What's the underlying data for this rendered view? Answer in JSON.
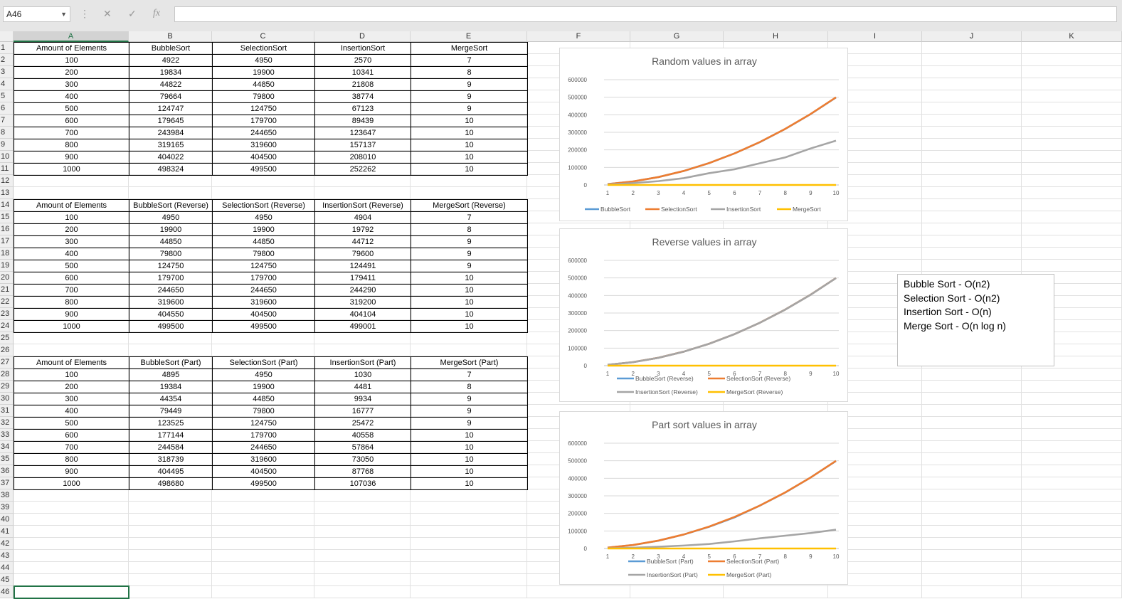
{
  "formula_bar": {
    "name_box": "A46",
    "formula": ""
  },
  "columns": [
    "A",
    "B",
    "C",
    "D",
    "E",
    "F",
    "G",
    "H",
    "I",
    "J",
    "K"
  ],
  "rows": [
    "1",
    "2",
    "3",
    "4",
    "5",
    "6",
    "7",
    "8",
    "9",
    "10",
    "11",
    "12",
    "13",
    "14",
    "15",
    "16",
    "17",
    "18",
    "19",
    "20",
    "21",
    "22",
    "23",
    "24",
    "25",
    "26",
    "27",
    "28",
    "29",
    "30",
    "31",
    "32",
    "33",
    "34",
    "35",
    "36",
    "37",
    "38",
    "39",
    "40",
    "41",
    "42",
    "43",
    "44",
    "45",
    "46"
  ],
  "tables": [
    {
      "headers": [
        "Amount of Elements",
        "BubbleSort",
        "SelectionSort",
        "InsertionSort",
        "MergeSort"
      ],
      "rows": [
        [
          "100",
          "4922",
          "4950",
          "2570",
          "7"
        ],
        [
          "200",
          "19834",
          "19900",
          "10341",
          "8"
        ],
        [
          "300",
          "44822",
          "44850",
          "21808",
          "9"
        ],
        [
          "400",
          "79664",
          "79800",
          "38774",
          "9"
        ],
        [
          "500",
          "124747",
          "124750",
          "67123",
          "9"
        ],
        [
          "600",
          "179645",
          "179700",
          "89439",
          "10"
        ],
        [
          "700",
          "243984",
          "244650",
          "123647",
          "10"
        ],
        [
          "800",
          "319165",
          "319600",
          "157137",
          "10"
        ],
        [
          "900",
          "404022",
          "404500",
          "208010",
          "10"
        ],
        [
          "1000",
          "498324",
          "499500",
          "252262",
          "10"
        ]
      ]
    },
    {
      "headers": [
        "Amount of Elements",
        "BubbleSort (Reverse)",
        "SelectionSort (Reverse)",
        "InsertionSort (Reverse)",
        "MergeSort (Reverse)"
      ],
      "rows": [
        [
          "100",
          "4950",
          "4950",
          "4904",
          "7"
        ],
        [
          "200",
          "19900",
          "19900",
          "19792",
          "8"
        ],
        [
          "300",
          "44850",
          "44850",
          "44712",
          "9"
        ],
        [
          "400",
          "79800",
          "79800",
          "79600",
          "9"
        ],
        [
          "500",
          "124750",
          "124750",
          "124491",
          "9"
        ],
        [
          "600",
          "179700",
          "179700",
          "179411",
          "10"
        ],
        [
          "700",
          "244650",
          "244650",
          "244290",
          "10"
        ],
        [
          "800",
          "319600",
          "319600",
          "319200",
          "10"
        ],
        [
          "900",
          "404550",
          "404500",
          "404104",
          "10"
        ],
        [
          "1000",
          "499500",
          "499500",
          "499001",
          "10"
        ]
      ]
    },
    {
      "headers": [
        "Amount of Elements",
        "BubbleSort (Part)",
        "SelectionSort (Part)",
        "InsertionSort (Part)",
        "MergeSort (Part)"
      ],
      "rows": [
        [
          "100",
          "4895",
          "4950",
          "1030",
          "7"
        ],
        [
          "200",
          "19384",
          "19900",
          "4481",
          "8"
        ],
        [
          "300",
          "44354",
          "44850",
          "9934",
          "9"
        ],
        [
          "400",
          "79449",
          "79800",
          "16777",
          "9"
        ],
        [
          "500",
          "123525",
          "124750",
          "25472",
          "9"
        ],
        [
          "600",
          "177144",
          "179700",
          "40558",
          "10"
        ],
        [
          "700",
          "244584",
          "244650",
          "57864",
          "10"
        ],
        [
          "800",
          "318739",
          "319600",
          "73050",
          "10"
        ],
        [
          "900",
          "404495",
          "404500",
          "87768",
          "10"
        ],
        [
          "1000",
          "498680",
          "499500",
          "107036",
          "10"
        ]
      ]
    }
  ],
  "chart_data": [
    {
      "type": "line",
      "title": "Random values in array",
      "categories": [
        "1",
        "2",
        "3",
        "4",
        "5",
        "6",
        "7",
        "8",
        "9",
        "10"
      ],
      "yticks": [
        "0",
        "100000",
        "200000",
        "300000",
        "400000",
        "500000",
        "600000"
      ],
      "ylim": [
        0,
        600000
      ],
      "legend_position": "bottom",
      "series": [
        {
          "name": "BubbleSort",
          "color": "#5b9bd5",
          "values": [
            4922,
            19834,
            44822,
            79664,
            124747,
            179645,
            243984,
            319165,
            404022,
            498324
          ]
        },
        {
          "name": "SelectionSort",
          "color": "#ed7d31",
          "values": [
            4950,
            19900,
            44850,
            79800,
            124750,
            179700,
            244650,
            319600,
            404500,
            499500
          ]
        },
        {
          "name": "InsertionSort",
          "color": "#a5a5a5",
          "values": [
            2570,
            10341,
            21808,
            38774,
            67123,
            89439,
            123647,
            157137,
            208010,
            252262
          ]
        },
        {
          "name": "MergeSort",
          "color": "#ffc000",
          "values": [
            7,
            8,
            9,
            9,
            9,
            10,
            10,
            10,
            10,
            10
          ]
        }
      ]
    },
    {
      "type": "line",
      "title": "Reverse values in array",
      "categories": [
        "1",
        "2",
        "3",
        "4",
        "5",
        "6",
        "7",
        "8",
        "9",
        "10"
      ],
      "yticks": [
        "0",
        "100000",
        "200000",
        "300000",
        "400000",
        "500000",
        "600000"
      ],
      "ylim": [
        0,
        600000
      ],
      "legend_position": "bottom",
      "series": [
        {
          "name": "BubbleSort (Reverse)",
          "color": "#5b9bd5",
          "values": [
            4950,
            19900,
            44850,
            79800,
            124750,
            179700,
            244650,
            319600,
            404550,
            499500
          ]
        },
        {
          "name": "SelectionSort (Reverse)",
          "color": "#ed7d31",
          "values": [
            4950,
            19900,
            44850,
            79800,
            124750,
            179700,
            244650,
            319600,
            404500,
            499500
          ]
        },
        {
          "name": "InsertionSort (Reverse)",
          "color": "#a5a5a5",
          "values": [
            4904,
            19792,
            44712,
            79600,
            124491,
            179411,
            244290,
            319200,
            404104,
            499001
          ]
        },
        {
          "name": "MergeSort (Reverse)",
          "color": "#ffc000",
          "values": [
            7,
            8,
            9,
            9,
            9,
            10,
            10,
            10,
            10,
            10
          ]
        }
      ]
    },
    {
      "type": "line",
      "title": "Part sort values in array",
      "categories": [
        "1",
        "2",
        "3",
        "4",
        "5",
        "6",
        "7",
        "8",
        "9",
        "10"
      ],
      "yticks": [
        "0",
        "100000",
        "200000",
        "300000",
        "400000",
        "500000",
        "600000"
      ],
      "ylim": [
        0,
        600000
      ],
      "legend_position": "bottom",
      "series": [
        {
          "name": "BubbleSort (Part)",
          "color": "#5b9bd5",
          "values": [
            4895,
            19384,
            44354,
            79449,
            123525,
            177144,
            244584,
            318739,
            404495,
            498680
          ]
        },
        {
          "name": "SelectionSort (Part)",
          "color": "#ed7d31",
          "values": [
            4950,
            19900,
            44850,
            79800,
            124750,
            179700,
            244650,
            319600,
            404500,
            499500
          ]
        },
        {
          "name": "InsertionSort (Part)",
          "color": "#a5a5a5",
          "values": [
            1030,
            4481,
            9934,
            16777,
            25472,
            40558,
            57864,
            73050,
            87768,
            107036
          ]
        },
        {
          "name": "MergeSort (Part)",
          "color": "#ffc000",
          "values": [
            7,
            8,
            9,
            9,
            9,
            10,
            10,
            10,
            10,
            10
          ]
        }
      ]
    }
  ],
  "textbox": {
    "lines": [
      "Bubble Sort - O(n2)",
      "Selection Sort - O(n2)",
      "Insertion Sort - O(n)",
      "Merge Sort - O(n log n)"
    ]
  },
  "colors": {
    "excel_green": "#217346",
    "header_bg": "#efefef"
  }
}
